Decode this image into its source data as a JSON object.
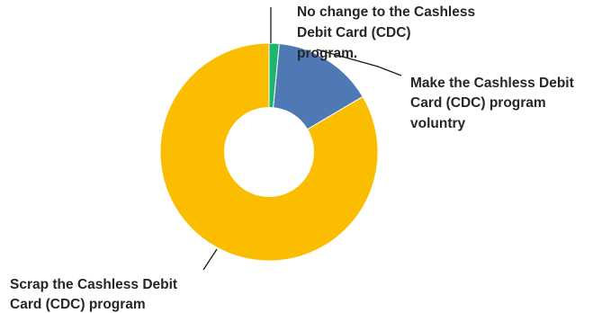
{
  "chart_data": {
    "type": "pie",
    "variant": "donut",
    "slices": [
      {
        "label": "No change to the Cashless Debit Card (CDC) program.",
        "value": 1.5,
        "color": "#1db46d"
      },
      {
        "label": "Make the Cashless Debit Card (CDC) program voluntry",
        "value": 15,
        "color": "#4f79b5"
      },
      {
        "label": "Scrap the Cashless Debit Card (CDC) program",
        "value": 83.5,
        "color": "#fbbd00"
      }
    ],
    "legend": "none (callout labels)"
  },
  "labels": {
    "no_change": [
      "No change to the Cashless",
      "Debit Card (CDC)",
      "program."
    ],
    "voluntary": [
      "Make the Cashless Debit",
      "Card (CDC) program",
      "voluntry"
    ],
    "scrap": [
      "Scrap the Cashless Debit",
      "Card (CDC) program"
    ]
  }
}
